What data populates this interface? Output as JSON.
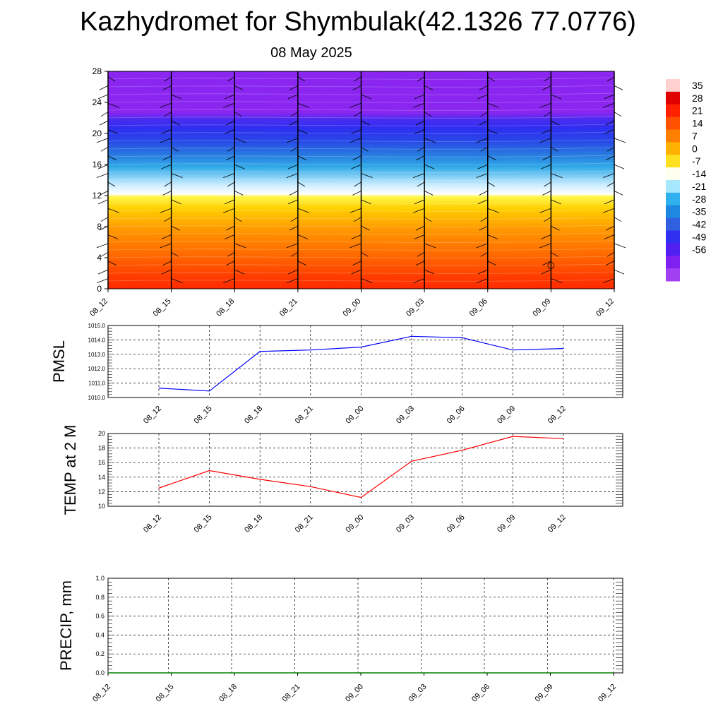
{
  "title": "Kazhydromet for Shymbulak(42.1326 77.0776)",
  "date": "08 May 2025",
  "chart_data": [
    {
      "type": "heatmap",
      "name": "vertical-cross-section",
      "x_labels": [
        "08_12",
        "08_15",
        "08_18",
        "08_21",
        "09_00",
        "09_03",
        "09_06",
        "09_09",
        "09_12"
      ],
      "y_ticks": [
        0,
        4,
        8,
        12,
        16,
        20,
        24,
        28
      ],
      "ylim": [
        0,
        28
      ],
      "colorbar": {
        "labels": [
          "35",
          "28",
          "21",
          "14",
          "7",
          "0",
          "-7",
          "-14",
          "-21",
          "-28",
          "-35",
          "-42",
          "-49",
          "-56"
        ],
        "range": [
          -63,
          42
        ],
        "colors": [
          "#ffd0d0",
          "#e00000",
          "#ff2000",
          "#ff5000",
          "#ff8000",
          "#ffb000",
          "#ffe020",
          "#fffff0",
          "#a8e8ff",
          "#30b0ee",
          "#1e88e0",
          "#3060e0",
          "#3030f0",
          "#5020f0",
          "#8020f0",
          "#a040f0"
        ]
      },
      "marker": {
        "x_index": 7,
        "height": 3,
        "symbol": "circle"
      }
    },
    {
      "type": "line",
      "name": "pmsl",
      "ylabel": "PMSL",
      "categories": [
        "08_12",
        "08_15",
        "08_18",
        "08_21",
        "09_00",
        "09_03",
        "09_06",
        "09_09",
        "09_12"
      ],
      "values": [
        1010.65,
        1010.45,
        1013.2,
        1013.3,
        1013.5,
        1014.25,
        1014.15,
        1013.3,
        1013.4
      ],
      "ylim": [
        1010.0,
        1015.0
      ],
      "y_ticks": [
        "1010.0",
        "1011.0",
        "1012.0",
        "1013.0",
        "1014.0",
        "1015.0"
      ],
      "color": "#0000ff",
      "grid": true
    },
    {
      "type": "line",
      "name": "temp2m",
      "ylabel": "TEMP at 2 M",
      "categories": [
        "08_12",
        "08_15",
        "08_18",
        "08_21",
        "09_00",
        "09_03",
        "09_06",
        "09_09",
        "09_12"
      ],
      "values": [
        12.5,
        14.9,
        13.7,
        12.7,
        11.2,
        16.2,
        17.7,
        19.6,
        19.3
      ],
      "ylim": [
        10,
        20
      ],
      "y_ticks": [
        "10",
        "12",
        "14",
        "16",
        "18",
        "20"
      ],
      "color": "#ff0000",
      "grid": true
    },
    {
      "type": "line",
      "name": "precip",
      "ylabel": "PRECIP, mm",
      "categories": [
        "08_12",
        "08_15",
        "08_18",
        "08_21",
        "09_00",
        "09_03",
        "09_06",
        "09_09",
        "09_12"
      ],
      "values": [
        0,
        0,
        0,
        0,
        0,
        0,
        0,
        0,
        0
      ],
      "ylim": [
        0,
        1.0
      ],
      "y_ticks": [
        "0.0",
        "0.2",
        "0.4",
        "0.6",
        "0.8",
        "1.0"
      ],
      "color": "#008000",
      "grid": true
    }
  ]
}
